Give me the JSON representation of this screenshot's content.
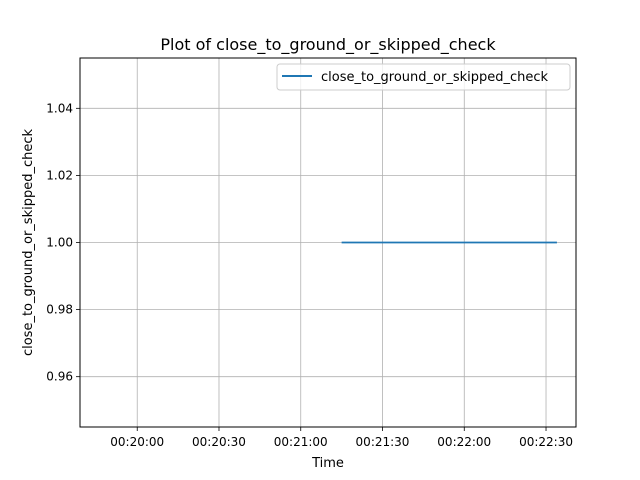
{
  "chart_data": {
    "type": "line",
    "title": "Plot of close_to_ground_or_skipped_check",
    "xlabel": "Time",
    "ylabel": "close_to_ground_or_skipped_check",
    "x_ticks": [
      "00:20:00",
      "00:20:30",
      "00:21:00",
      "00:21:30",
      "00:22:00",
      "00:22:30"
    ],
    "y_ticks": [
      "0.96",
      "0.98",
      "1.00",
      "1.02",
      "1.04"
    ],
    "xlim": [
      "00:19:39",
      "00:22:41"
    ],
    "ylim": [
      0.945,
      1.055
    ],
    "grid": true,
    "legend_position": "top-right",
    "series": [
      {
        "name": "close_to_ground_or_skipped_check",
        "color": "#1f77b4",
        "x": [
          "00:21:15",
          "00:22:34"
        ],
        "y": [
          1.0,
          1.0
        ]
      }
    ]
  }
}
